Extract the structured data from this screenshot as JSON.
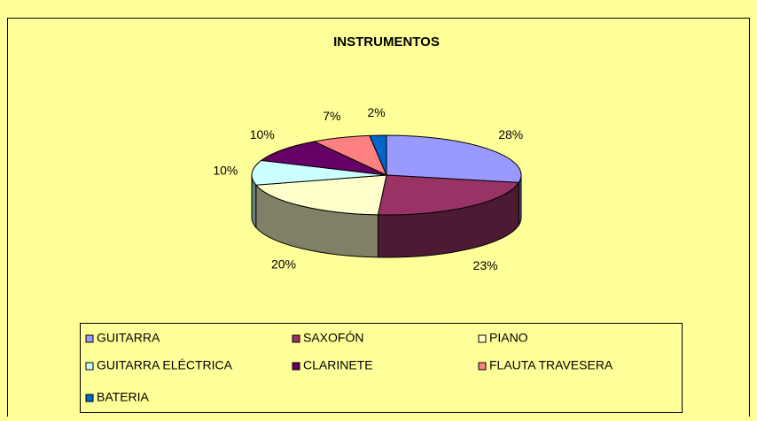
{
  "chart_data": {
    "type": "pie3d",
    "title": "INSTRUMENTOS",
    "categories": [
      "GUITARRA",
      "SAXOFÓN",
      "PIANO",
      "GUITARRA ELÉCTRICA",
      "CLARINETE",
      "FLAUTA TRAVESERA",
      "BATERIA"
    ],
    "values": [
      28,
      23,
      20,
      10,
      10,
      7,
      2
    ],
    "value_labels": [
      "28%",
      "23%",
      "20%",
      "10%",
      "10%",
      "7%",
      "2%"
    ],
    "colors": [
      "#9999FF",
      "#993366",
      "#FFFFCC",
      "#CCFFFF",
      "#660066",
      "#FF8080",
      "#0066CC"
    ]
  }
}
